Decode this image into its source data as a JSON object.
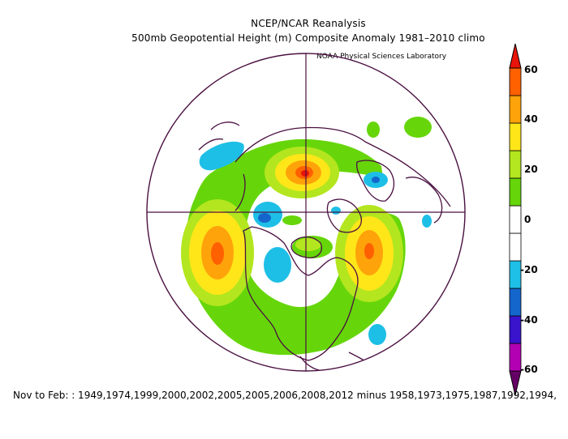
{
  "header": {
    "title_line1": "NCEP/NCAR Reanalysis",
    "title_line2": "500mb Geopotential Height (m) Composite Anomaly 1981–2010 climo",
    "credit": "NOAA Physical Sciences Laboratory"
  },
  "footer": {
    "composite_text": "Nov to Feb: : 1949,1974,1999,2000,2002,2005,2005,2006,2008,2012  minus 1958,1973,1975,1987,1992,1994,"
  },
  "colorbar": {
    "labels": [
      "60",
      "40",
      "20",
      "0",
      "-20",
      "-40",
      "-60"
    ],
    "colors": [
      "#660066",
      "#b300b3",
      "#3a14cc",
      "#1466cc",
      "#1ebfe6",
      "#ffffff",
      "#ffffff",
      "#66d60a",
      "#b3e61e",
      "#ffe619",
      "#ffa30a",
      "#ff6000",
      "#e8140a"
    ]
  },
  "map": {
    "projection": "north-polar-stereographic",
    "variable": "500mb geopotential height anomaly (m)"
  }
}
